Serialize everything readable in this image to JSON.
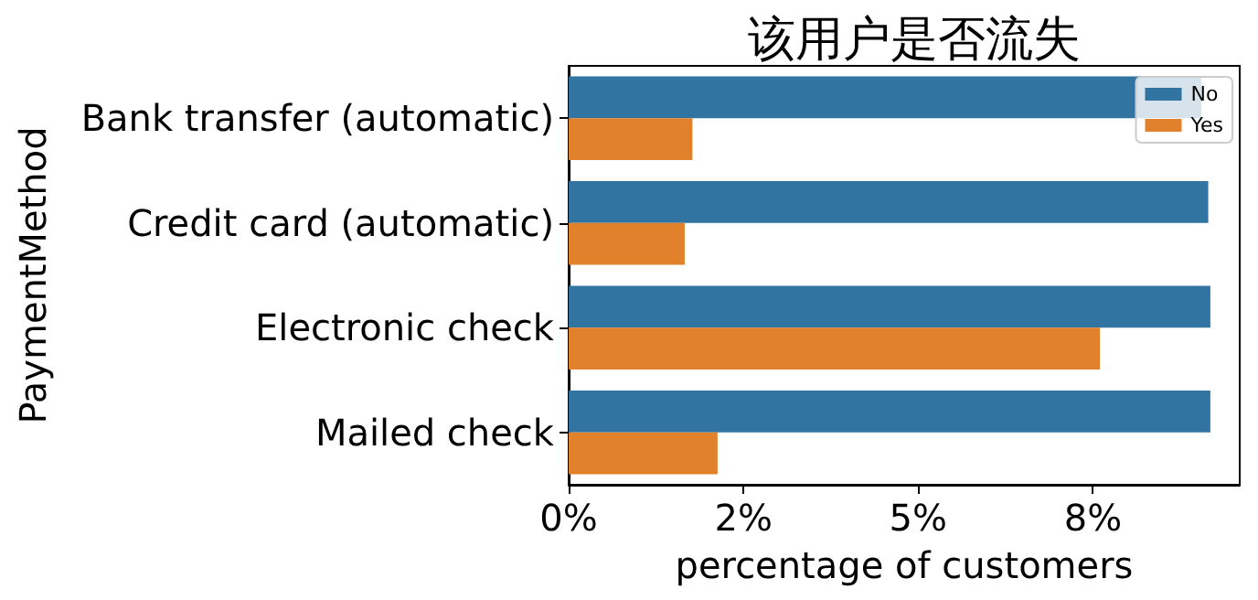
{
  "chart_data": {
    "type": "bar",
    "orientation": "horizontal",
    "title": "该用户是否流失",
    "xlabel": "percentage of customers",
    "ylabel": "PaymentMethod",
    "categories": [
      "Bank transfer (automatic)",
      "Credit card (automatic)",
      "Electronic check",
      "Mailed check"
    ],
    "series": [
      {
        "name": "No",
        "color": "#3274a1",
        "values": [
          9.05,
          9.15,
          9.18,
          9.18
        ]
      },
      {
        "name": "Yes",
        "color": "#e1812c",
        "values": [
          1.77,
          1.66,
          7.6,
          2.13
        ]
      }
    ],
    "xlim": [
      0,
      9.6
    ],
    "xticks": [
      {
        "value": 0,
        "label": "0%"
      },
      {
        "value": 2.5,
        "label": "2%"
      },
      {
        "value": 5,
        "label": "5%"
      },
      {
        "value": 7.5,
        "label": "8%"
      }
    ],
    "legend": "top right",
    "grid": false
  }
}
